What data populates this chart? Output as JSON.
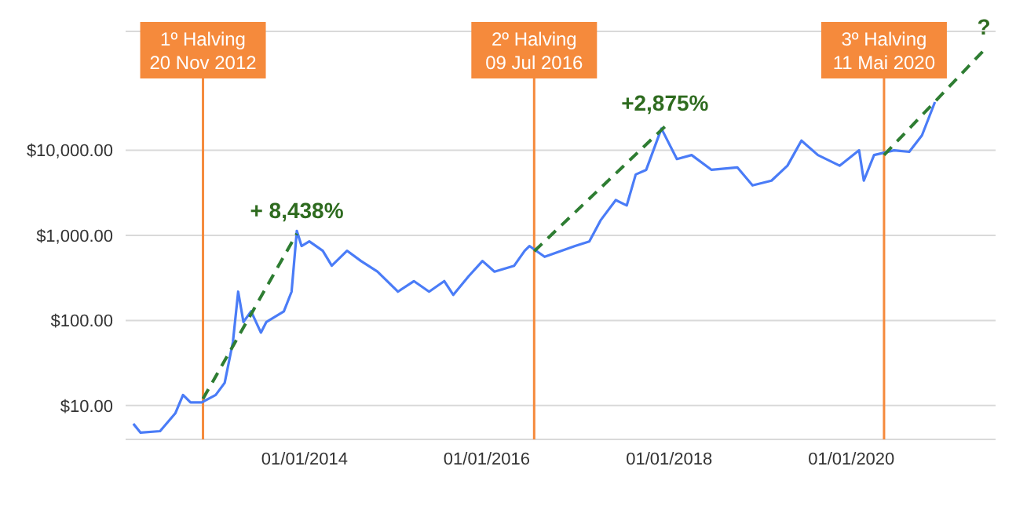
{
  "chart_data": {
    "type": "line",
    "log": "y",
    "grid": "y",
    "marker": "none",
    "xlim": [
      "2012-01-15",
      "2021-08-01"
    ],
    "xticks": [
      {
        "value": "2014-01-01",
        "label": "01/01/2014"
      },
      {
        "value": "2016-01-01",
        "label": "01/01/2016"
      },
      {
        "value": "2018-01-01",
        "label": "01/01/2018"
      },
      {
        "value": "2020-01-01",
        "label": "01/01/2020"
      }
    ],
    "ylim": [
      4,
      250000
    ],
    "yticks": [
      {
        "value": 10,
        "label": "$10.00"
      },
      {
        "value": 100,
        "label": "$100.00"
      },
      {
        "value": 1000,
        "label": "$1,000.00"
      },
      {
        "value": 10000,
        "label": "$10,000.00"
      }
    ],
    "series": [
      {
        "color": "#4a7cf7",
        "line_style": "solid",
        "x": [
          "2012-02-15",
          "2012-03-15",
          "2012-06-01",
          "2012-08-01",
          "2012-09-01",
          "2012-10-01",
          "2012-11-15",
          "2013-01-10",
          "2013-02-15",
          "2013-03-20",
          "2013-04-10",
          "2013-05-01",
          "2013-06-01",
          "2013-07-10",
          "2013-08-01",
          "2013-10-10",
          "2013-11-10",
          "2013-12-01",
          "2013-12-20",
          "2014-01-20",
          "2014-03-15",
          "2014-04-20",
          "2014-06-20",
          "2014-08-15",
          "2014-10-20",
          "2015-01-10",
          "2015-03-15",
          "2015-05-15",
          "2015-07-15",
          "2015-08-20",
          "2015-10-20",
          "2015-12-15",
          "2016-02-01",
          "2016-04-20",
          "2016-06-01",
          "2016-06-20",
          "2016-08-20",
          "2016-12-20",
          "2017-02-15",
          "2017-04-01",
          "2017-06-01",
          "2017-07-15",
          "2017-08-20",
          "2017-10-01",
          "2017-12-01",
          "2018-02-01",
          "2018-04-01",
          "2018-06-20",
          "2018-10-01",
          "2018-12-01",
          "2019-02-15",
          "2019-04-20",
          "2019-06-15",
          "2019-08-20",
          "2019-11-15",
          "2020-02-01",
          "2020-02-20",
          "2020-04-01",
          "2020-06-20",
          "2020-08-20",
          "2020-10-10",
          "2020-12-01"
        ],
        "values": [
          6.1,
          4.8,
          5,
          8.1,
          13.3,
          10.9,
          10.9,
          13.3,
          18.5,
          56,
          218,
          96,
          128,
          72,
          96,
          128,
          218,
          1130,
          750,
          850,
          660,
          440,
          660,
          500,
          375,
          218,
          290,
          218,
          290,
          200,
          330,
          500,
          375,
          440,
          660,
          750,
          560,
          750,
          850,
          1500,
          2600,
          2250,
          5200,
          5900,
          18000,
          7900,
          8800,
          5900,
          6300,
          3870,
          4400,
          6600,
          13000,
          8800,
          6600,
          10000,
          4400,
          8800,
          10000,
          9600,
          15000,
          37000
        ]
      },
      {
        "color": "#2e7d32",
        "line_style": "dashed",
        "x": [
          "2012-11-20",
          "2013-12-01"
        ],
        "values": [
          12,
          1050
        ]
      },
      {
        "color": "#2e7d32",
        "line_style": "dashed",
        "x": [
          "2016-07-09",
          "2017-12-15"
        ],
        "values": [
          650,
          19000
        ]
      },
      {
        "color": "#2e7d32",
        "line_style": "dashed",
        "x": [
          "2020-05-11",
          "2021-06-15"
        ],
        "values": [
          8800,
          150000
        ]
      }
    ],
    "ref_lines": [
      {
        "axis": "x",
        "value": "2012-11-20",
        "label": "1º Halving\n20 Nov 2012",
        "color": "#f58a3c"
      },
      {
        "axis": "x",
        "value": "2016-07-09",
        "label": "2º Halving\n09 Jul 2016",
        "color": "#f58a3c"
      },
      {
        "axis": "x",
        "value": "2020-05-11",
        "label": "3º Halving\n11 Mai 2020",
        "color": "#f58a3c"
      }
    ],
    "annotations": [
      "+ 8,438%",
      "+2,875%",
      "?"
    ]
  }
}
